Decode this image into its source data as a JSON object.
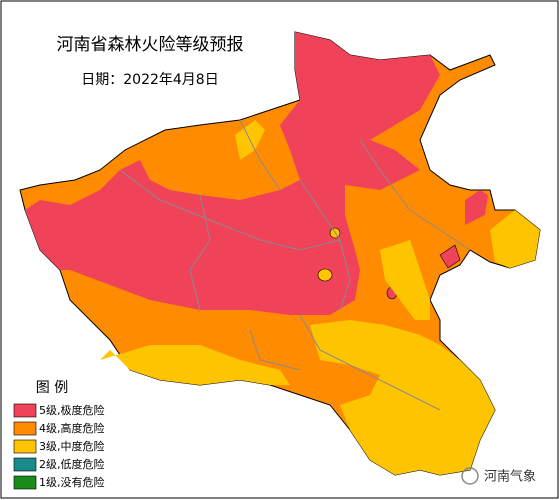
{
  "title": "河南省森林火险等级预报",
  "date": "日期：2022年4月8日",
  "legend": {
    "title": "图  例",
    "items": [
      {
        "label": "5级,极度危险",
        "color": "#f0435a"
      },
      {
        "label": "4级,高度危险",
        "color": "#ff8c00"
      },
      {
        "label": "3级,中度危险",
        "color": "#ffc400"
      },
      {
        "label": "2级,低度危险",
        "color": "#1a8a8a"
      },
      {
        "label": "1级,没有危险",
        "color": "#1a8a1a"
      }
    ]
  },
  "watermark": "河南气象"
}
